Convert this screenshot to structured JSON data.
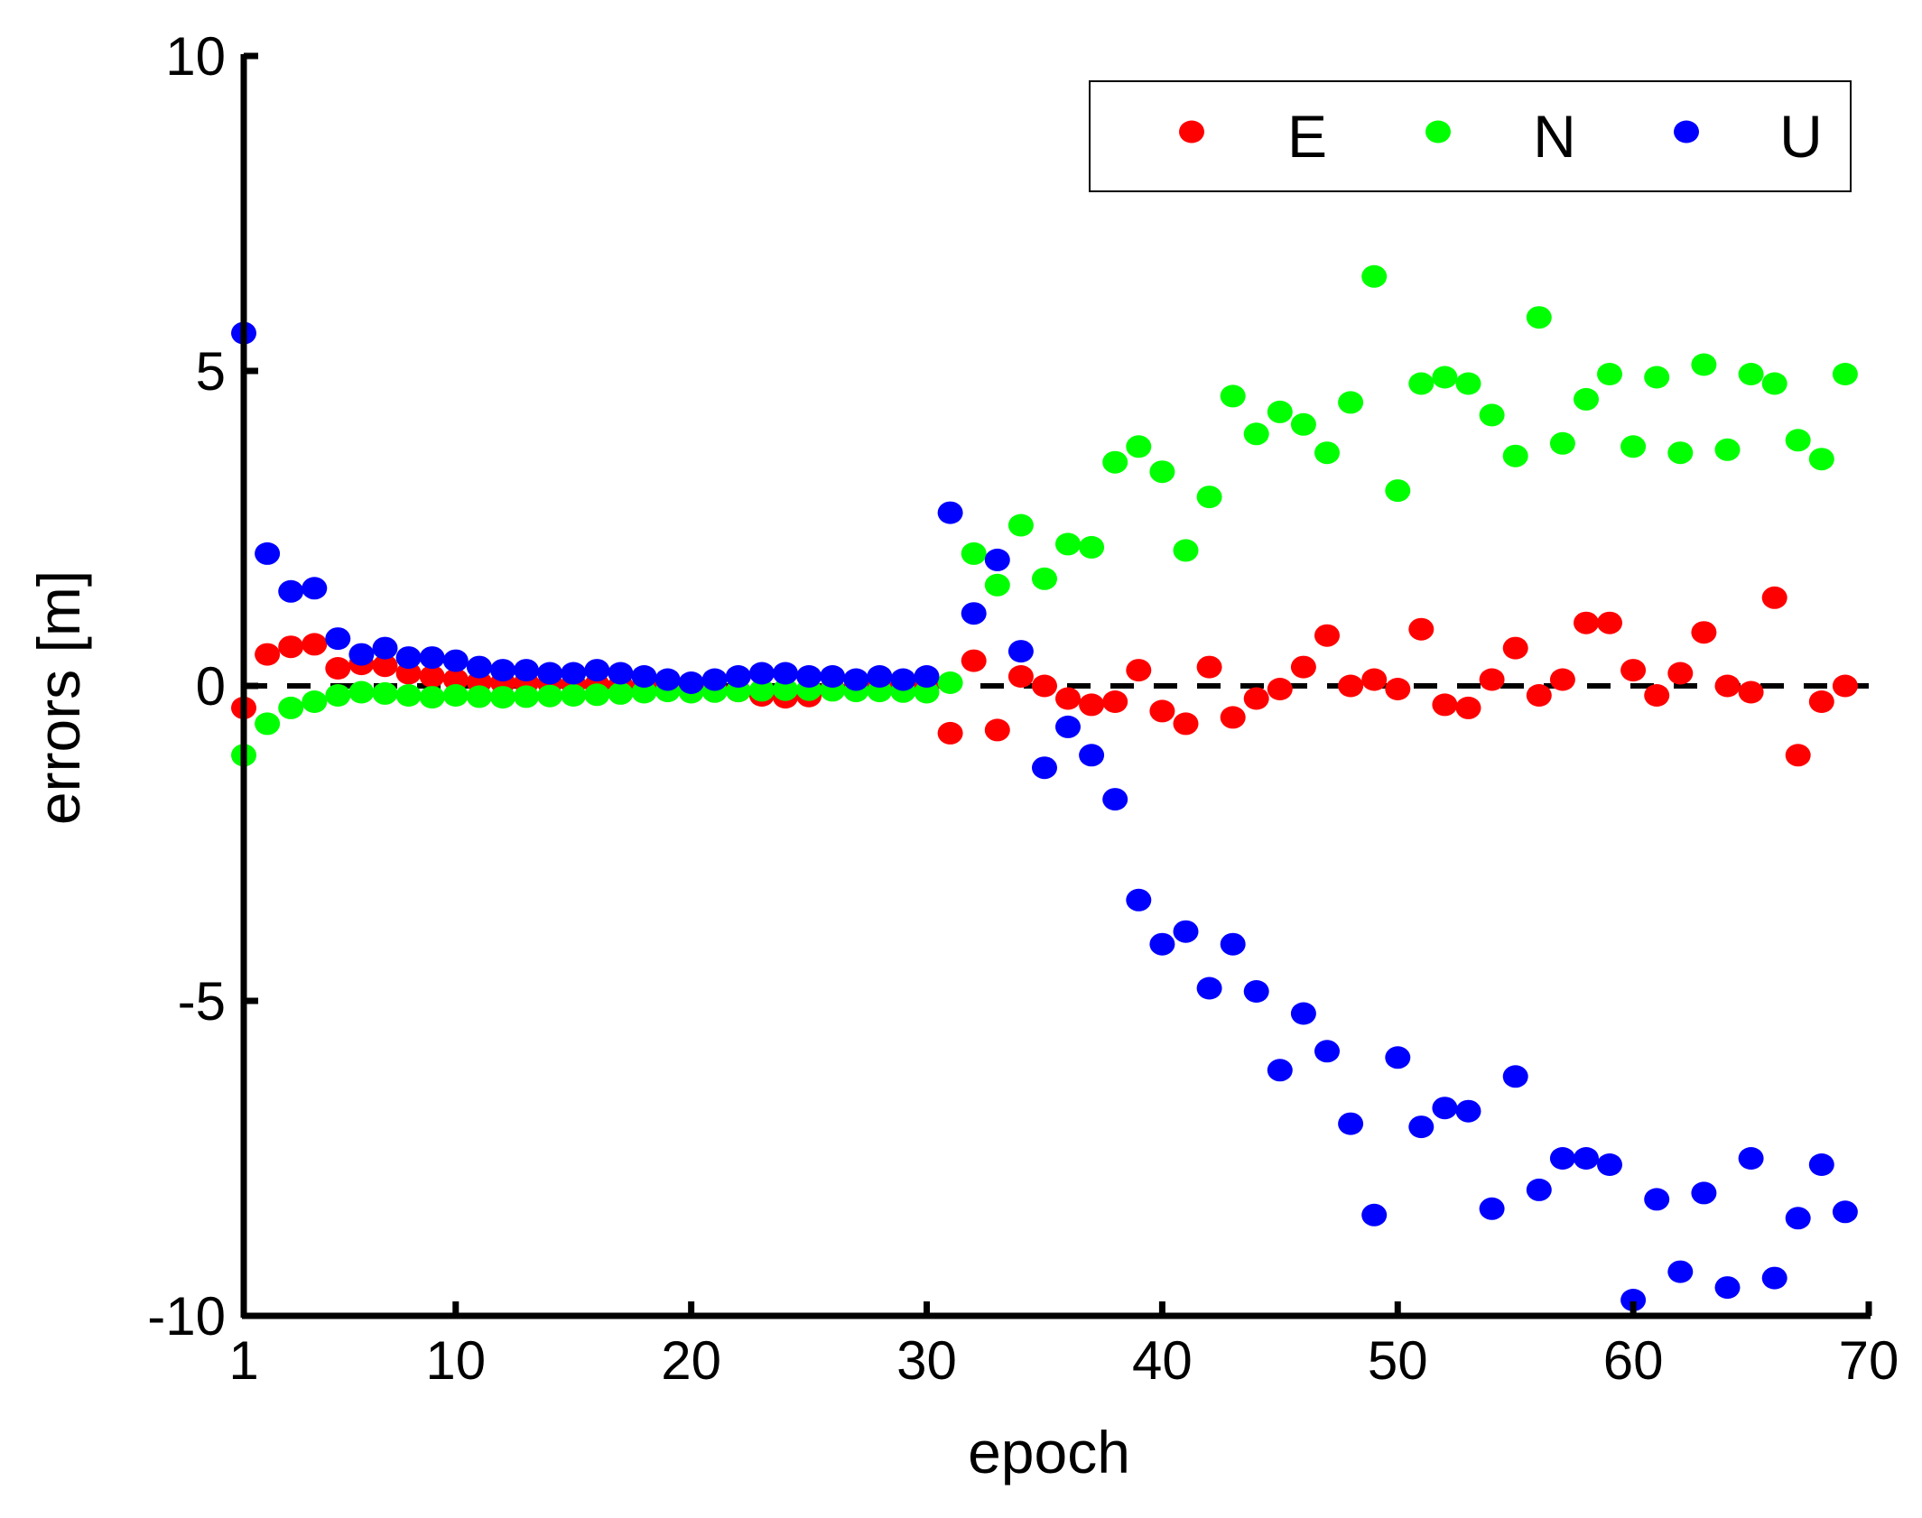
{
  "chart_data": {
    "type": "scatter",
    "title": "",
    "xlabel": "epoch",
    "ylabel": "errors [m]",
    "xlim": [
      1,
      70
    ],
    "ylim": [
      -10,
      10
    ],
    "xticks": [
      1,
      10,
      20,
      30,
      40,
      50,
      60,
      70
    ],
    "xtick_labels": [
      "1",
      "10",
      "20",
      "30",
      "40",
      "50",
      "60",
      "70"
    ],
    "yticks": [
      10,
      5,
      0,
      -5,
      -10
    ],
    "ytick_labels": [
      "10",
      "5",
      "0",
      "-5",
      "-10"
    ],
    "reference_line": {
      "y": 0,
      "style": "dashed",
      "color": "#000000"
    },
    "legend_position": "top-right",
    "series": [
      {
        "name": "E",
        "color": "#ff0000",
        "x": [
          1,
          2,
          3,
          4,
          5,
          6,
          7,
          8,
          9,
          10,
          11,
          12,
          13,
          14,
          15,
          16,
          17,
          18,
          19,
          20,
          21,
          22,
          23,
          24,
          25,
          26,
          27,
          28,
          29,
          30,
          31,
          32,
          33,
          34,
          35,
          36,
          37,
          38,
          39,
          40,
          41,
          42,
          43,
          44,
          45,
          46,
          47,
          48,
          49,
          50,
          51,
          52,
          53,
          54,
          55,
          56,
          57,
          58,
          59,
          60,
          61,
          62,
          63,
          64,
          65,
          66,
          67,
          68,
          69
        ],
        "y": [
          -0.35,
          0.5,
          0.62,
          0.66,
          0.28,
          0.35,
          0.32,
          0.2,
          0.15,
          0.1,
          0.06,
          0.05,
          0.05,
          0.04,
          0.03,
          0.02,
          0.01,
          0.0,
          0.0,
          -0.02,
          -0.05,
          -0.08,
          -0.15,
          -0.18,
          -0.16,
          -0.05,
          -0.03,
          -0.02,
          -0.01,
          0.0,
          -0.75,
          0.4,
          -0.7,
          0.15,
          0.0,
          -0.2,
          -0.3,
          -0.25,
          0.25,
          -0.4,
          -0.6,
          0.3,
          -0.5,
          -0.2,
          -0.05,
          0.3,
          0.8,
          0.0,
          0.1,
          -0.05,
          0.9,
          -0.3,
          -0.35,
          0.1,
          0.6,
          -0.15,
          0.1,
          1.0,
          1.0,
          0.25,
          -0.15,
          0.2,
          0.85,
          0.0,
          -0.1,
          1.4,
          -1.1,
          -0.25,
          0.0
        ]
      },
      {
        "name": "N",
        "color": "#00ff00",
        "x": [
          1,
          2,
          3,
          4,
          5,
          6,
          7,
          8,
          9,
          10,
          11,
          12,
          13,
          14,
          15,
          16,
          17,
          18,
          19,
          20,
          21,
          22,
          23,
          24,
          25,
          26,
          27,
          28,
          29,
          30,
          31,
          32,
          33,
          34,
          35,
          36,
          37,
          38,
          39,
          40,
          41,
          42,
          43,
          44,
          45,
          46,
          47,
          48,
          49,
          50,
          51,
          52,
          53,
          54,
          55,
          56,
          57,
          58,
          59,
          60,
          61,
          62,
          63,
          64,
          65,
          66,
          67,
          68,
          69
        ],
        "y": [
          -1.1,
          -0.6,
          -0.35,
          -0.25,
          -0.15,
          -0.1,
          -0.12,
          -0.15,
          -0.18,
          -0.15,
          -0.17,
          -0.18,
          -0.17,
          -0.16,
          -0.15,
          -0.14,
          -0.12,
          -0.1,
          -0.08,
          -0.1,
          -0.09,
          -0.08,
          -0.07,
          -0.06,
          -0.06,
          -0.07,
          -0.08,
          -0.08,
          -0.09,
          -0.1,
          0.05,
          2.1,
          1.6,
          2.55,
          1.7,
          2.25,
          2.2,
          3.55,
          3.8,
          3.4,
          2.15,
          3.0,
          4.6,
          4.0,
          4.35,
          4.15,
          3.7,
          4.5,
          6.5,
          3.1,
          4.8,
          4.9,
          4.8,
          4.3,
          3.65,
          5.85,
          3.85,
          4.55,
          4.95,
          3.8,
          4.9,
          3.7,
          5.1,
          3.75,
          4.95,
          4.8,
          3.9,
          3.6,
          4.95
        ]
      },
      {
        "name": "U",
        "color": "#0000ff",
        "x": [
          1,
          2,
          3,
          4,
          5,
          6,
          7,
          8,
          9,
          10,
          11,
          12,
          13,
          14,
          15,
          16,
          17,
          18,
          19,
          20,
          21,
          22,
          23,
          24,
          25,
          26,
          27,
          28,
          29,
          30,
          31,
          32,
          33,
          34,
          35,
          36,
          37,
          38,
          39,
          40,
          41,
          42,
          43,
          44,
          45,
          46,
          47,
          48,
          49,
          50,
          51,
          52,
          53,
          54,
          55,
          56,
          57,
          58,
          59,
          60,
          61,
          62,
          63,
          64,
          65,
          66,
          67,
          68,
          69
        ],
        "y": [
          5.6,
          2.1,
          1.5,
          1.55,
          0.75,
          0.5,
          0.6,
          0.45,
          0.45,
          0.4,
          0.3,
          0.25,
          0.25,
          0.2,
          0.2,
          0.25,
          0.2,
          0.15,
          0.1,
          0.05,
          0.1,
          0.15,
          0.2,
          0.2,
          0.15,
          0.15,
          0.1,
          0.15,
          0.1,
          0.15,
          2.75,
          1.15,
          2.0,
          0.55,
          -1.3,
          -0.65,
          -1.1,
          -1.8,
          -3.4,
          -4.1,
          -3.9,
          -4.8,
          -4.1,
          -4.85,
          -6.1,
          -5.2,
          -5.8,
          -6.95,
          -8.4,
          -5.9,
          -7.0,
          -6.7,
          -6.75,
          -8.3,
          -6.2,
          -8.0,
          -7.5,
          -7.5,
          -7.6,
          -9.75,
          -8.15,
          -9.3,
          -8.05,
          -9.55,
          -7.5,
          -9.4,
          -8.45,
          -7.6,
          -8.35
        ]
      }
    ]
  }
}
